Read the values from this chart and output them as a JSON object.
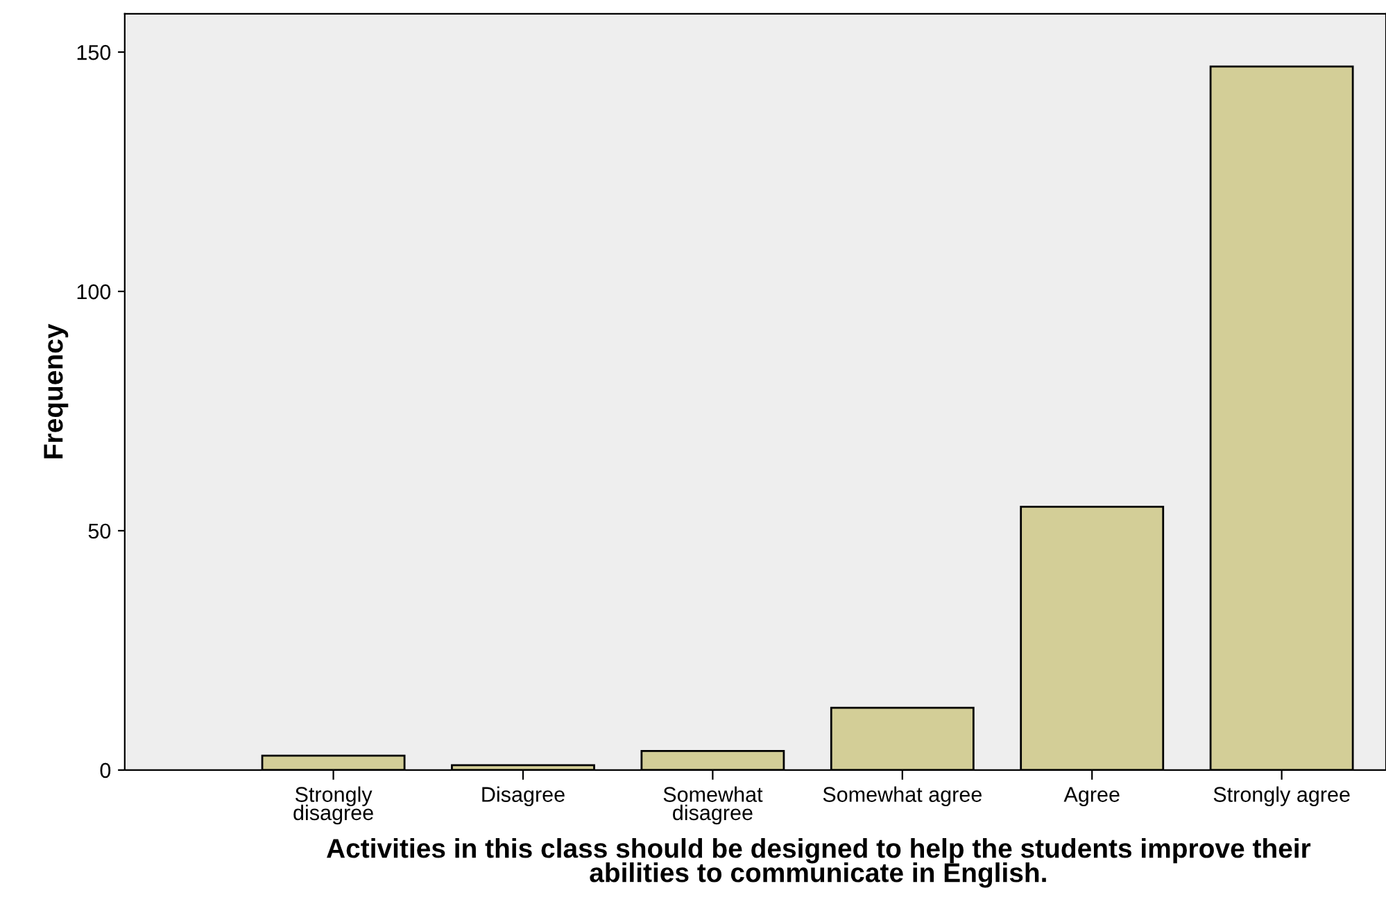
{
  "chart_data": {
    "type": "bar",
    "categories": [
      "Strongly\ndisagree",
      "Disagree",
      "Somewhat\ndisagree",
      "Somewhat agree",
      "Agree",
      "Strongly agree"
    ],
    "values": [
      3,
      1,
      4,
      13,
      55,
      147
    ],
    "color": "#d3ce97",
    "xlabel": "Activities in this class should be designed to help the students improve their\nabilities to communicate in English.",
    "ylabel": "Frequency",
    "ylim": [
      0,
      158
    ],
    "yticks": [
      0,
      50,
      100,
      150
    ],
    "grid": false
  }
}
